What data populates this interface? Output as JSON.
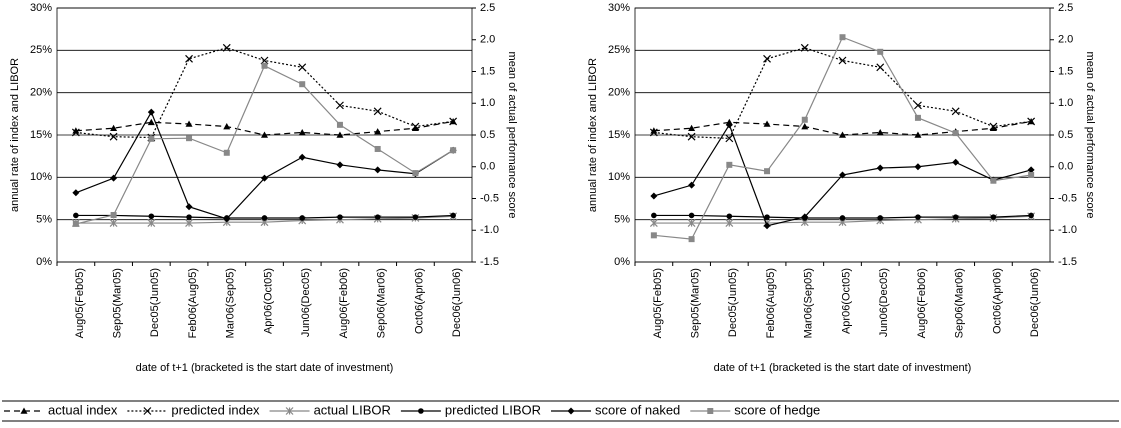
{
  "chart_data": [
    {
      "type": "line",
      "categories": [
        "Aug05(Feb05)",
        "Sep05(Mar05)",
        "Dec05(Jun05)",
        "Feb06(Aug05)",
        "Mar06(Sep05)",
        "Apr06(Oct05)",
        "Jun06(Dec05)",
        "Aug06(Feb06)",
        "Sep06(Mar06)",
        "Oct06(Apr06)",
        "Dec06(Jun06)"
      ],
      "series": [
        {
          "name": "actual index",
          "color": "#000000",
          "marker": "triangle",
          "dash": "dashed",
          "values": [
            15.5,
            15.8,
            16.5,
            16.3,
            16.0,
            15.0,
            15.3,
            15.0,
            15.4,
            15.8,
            16.6
          ]
        },
        {
          "name": "predicted index",
          "color": "#000000",
          "marker": "x",
          "dash": "dotted",
          "values": [
            15.3,
            14.8,
            14.7,
            24.0,
            25.3,
            23.8,
            23.0,
            18.5,
            17.8,
            16.0,
            16.6
          ]
        },
        {
          "name": "actual LIBOR",
          "color": "#888888",
          "marker": "asterisk",
          "dash": "solid",
          "values": [
            4.6,
            4.6,
            4.6,
            4.6,
            4.7,
            4.7,
            4.9,
            5.0,
            5.1,
            5.2,
            5.4
          ]
        },
        {
          "name": "predicted LIBOR",
          "color": "#000000",
          "marker": "circle",
          "dash": "solid",
          "values": [
            5.5,
            5.5,
            5.4,
            5.3,
            5.2,
            5.2,
            5.2,
            5.3,
            5.3,
            5.3,
            5.5
          ]
        },
        {
          "name": "score of naked",
          "color": "#000000",
          "marker": "diamond",
          "dash": "solid",
          "axis": "y2",
          "values": [
            -0.41,
            -0.18,
            0.86,
            -0.63,
            -0.82,
            -0.18,
            0.15,
            0.03,
            -0.05,
            -0.11,
            0.26
          ]
        },
        {
          "name": "score of hedge",
          "color": "#888888",
          "marker": "square",
          "dash": "solid",
          "axis": "y2",
          "values": [
            -0.9,
            -0.76,
            0.44,
            0.45,
            0.22,
            1.59,
            1.3,
            0.66,
            0.28,
            -0.1,
            0.26
          ]
        }
      ],
      "ylabel": "annual rate of index and LIBOR",
      "y2label": "mean of actual performance score",
      "xlabel": "date of t+1 (bracketed is the start date of investment)",
      "ylim": [
        0,
        30
      ],
      "yticks": [
        {
          "value": 0,
          "label": "0%"
        },
        {
          "value": 5,
          "label": "5%"
        },
        {
          "value": 10,
          "label": "10%"
        },
        {
          "value": 15,
          "label": "15%"
        },
        {
          "value": 20,
          "label": "20%"
        },
        {
          "value": 25,
          "label": "25%"
        },
        {
          "value": 30,
          "label": "30%"
        }
      ],
      "y2lim": [
        -1.5,
        2.5
      ],
      "y2ticks": [
        -1.5,
        {
          "value": -1.0,
          "label": "-1.0"
        },
        -0.5,
        {
          "value": 0.0,
          "label": "0.0"
        },
        0.5,
        {
          "value": 1.0,
          "label": "1.0"
        },
        1.5,
        {
          "value": 2.0,
          "label": "2.0"
        },
        2.5
      ],
      "grid": true,
      "legend": "bottom"
    },
    {
      "type": "line",
      "categories": [
        "Aug05(Feb05)",
        "Sep05(Mar05)",
        "Dec05(Jun05)",
        "Feb06(Aug05)",
        "Mar06(Sep05)",
        "Apr06(Oct05)",
        "Jun06(Dec05)",
        "Aug06(Feb06)",
        "Sep06(Mar06)",
        "Oct06(Apr06)",
        "Dec06(Jun06)"
      ],
      "series": [
        {
          "name": "actual index",
          "color": "#000000",
          "marker": "triangle",
          "dash": "dashed",
          "values": [
            15.5,
            15.8,
            16.5,
            16.3,
            16.0,
            15.0,
            15.3,
            15.0,
            15.4,
            15.8,
            16.6
          ]
        },
        {
          "name": "predicted index",
          "color": "#000000",
          "marker": "x",
          "dash": "dotted",
          "values": [
            15.3,
            14.8,
            14.6,
            24.0,
            25.3,
            23.8,
            23.0,
            18.5,
            17.8,
            16.0,
            16.6
          ]
        },
        {
          "name": "actual LIBOR",
          "color": "#888888",
          "marker": "asterisk",
          "dash": "solid",
          "values": [
            4.6,
            4.6,
            4.6,
            4.6,
            4.7,
            4.7,
            4.9,
            5.0,
            5.1,
            5.2,
            5.4
          ]
        },
        {
          "name": "predicted LIBOR",
          "color": "#000000",
          "marker": "circle",
          "dash": "solid",
          "values": [
            5.5,
            5.5,
            5.4,
            5.3,
            5.2,
            5.2,
            5.2,
            5.3,
            5.3,
            5.3,
            5.5
          ]
        },
        {
          "name": "score of naked",
          "color": "#000000",
          "marker": "diamond",
          "dash": "solid",
          "axis": "y2",
          "values": [
            -0.46,
            -0.29,
            0.66,
            -0.93,
            -0.79,
            -0.13,
            -0.02,
            0.0,
            0.07,
            -0.21,
            -0.05
          ]
        },
        {
          "name": "score of hedge",
          "color": "#888888",
          "marker": "square",
          "dash": "solid",
          "axis": "y2",
          "values": [
            -1.08,
            -1.14,
            0.03,
            -0.07,
            0.74,
            2.04,
            1.81,
            0.77,
            0.53,
            -0.22,
            -0.13
          ]
        }
      ],
      "ylabel": "annual rate of index and LIBOR",
      "y2label": "mean of actual performance score",
      "xlabel": "date of t+1 (bracketed is the start date of investment)",
      "ylim": [
        0,
        30
      ],
      "yticks": [
        {
          "value": 0,
          "label": "0%"
        },
        {
          "value": 5,
          "label": "5%"
        },
        {
          "value": 10,
          "label": "10%"
        },
        {
          "value": 15,
          "label": "15%"
        },
        {
          "value": 20,
          "label": "20%"
        },
        {
          "value": 25,
          "label": "25%"
        },
        {
          "value": 30,
          "label": "30%"
        }
      ],
      "y2lim": [
        -1.5,
        2.5
      ],
      "y2ticks": [
        -1.5,
        {
          "value": -1.0,
          "label": "-1.0"
        },
        -0.5,
        {
          "value": 0.0,
          "label": "0.0"
        },
        0.5,
        {
          "value": 1.0,
          "label": "1.0"
        },
        1.5,
        {
          "value": 2.0,
          "label": "2.0"
        },
        2.5
      ],
      "grid": true
    }
  ]
}
